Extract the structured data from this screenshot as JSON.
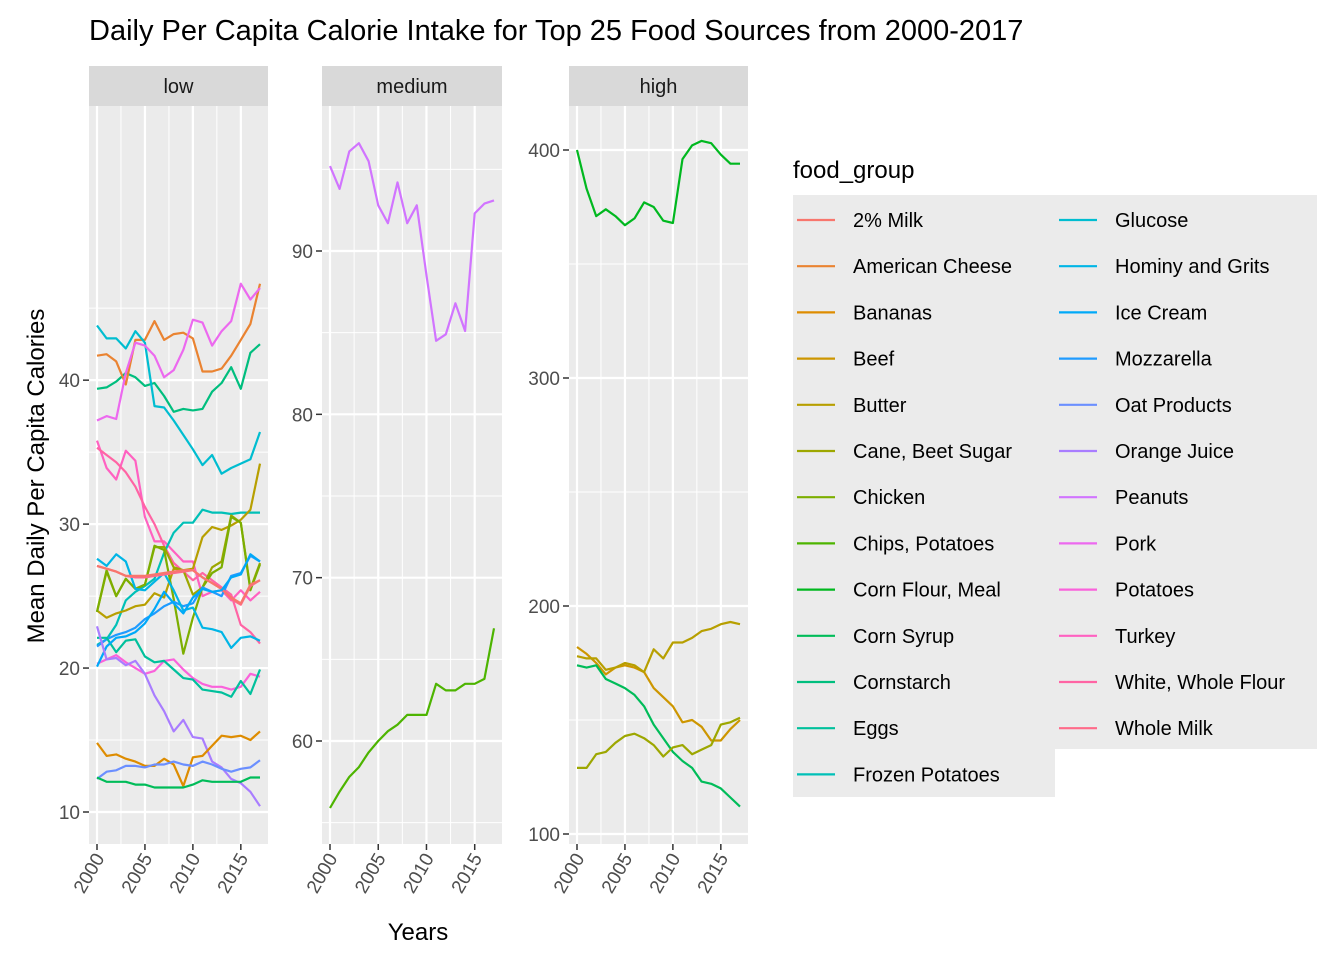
{
  "chart_data": {
    "type": "line",
    "title": "Daily Per Capita Calorie Intake for Top 25 Food Sources from 2000-2017",
    "xlabel": "Years",
    "ylabel": "Mean Daily Per Capita Calories",
    "legend_title": "food_group",
    "legend_position": "right",
    "grid": true,
    "x_ticks": [
      "2000",
      "2005",
      "2010",
      "2015"
    ],
    "x": [
      2000,
      2001,
      2002,
      2003,
      2004,
      2005,
      2006,
      2007,
      2008,
      2009,
      2010,
      2011,
      2012,
      2013,
      2014,
      2015,
      2016,
      2017
    ],
    "series": [
      {
        "name": "2% Milk",
        "color": "#F8766D"
      },
      {
        "name": "American Cheese",
        "color": "#EA8331"
      },
      {
        "name": "Bananas",
        "color": "#D89000"
      },
      {
        "name": "Beef",
        "color": "#C09B00"
      },
      {
        "name": "Butter",
        "color": "#A3A500"
      },
      {
        "name": "Cane, Beet Sugar",
        "color": "#7CAE00"
      },
      {
        "name": "Chicken",
        "color": "#39B600"
      },
      {
        "name": "Chips, Potatoes",
        "color": "#00BB4E"
      },
      {
        "name": "Corn Flour, Meal",
        "color": "#00BF7D"
      },
      {
        "name": "Corn Syrup",
        "color": "#00C1A3"
      },
      {
        "name": "Cornstarch",
        "color": "#00BFC4"
      },
      {
        "name": "Eggs",
        "color": "#00BAE0"
      },
      {
        "name": "Frozen Potatoes",
        "color": "#00B0F6"
      },
      {
        "name": "Glucose",
        "color": "#35A2FF"
      },
      {
        "name": "Hominy and Grits",
        "color": "#9590FF"
      },
      {
        "name": "Ice Cream",
        "color": "#C77CFF"
      },
      {
        "name": "Mozzarella",
        "color": "#E76BF3"
      },
      {
        "name": "Oat Products",
        "color": "#FA62DB"
      },
      {
        "name": "Orange Juice",
        "color": "#FF62BC"
      },
      {
        "name": "Peanuts",
        "color": "#FF6C91"
      },
      {
        "name": "Pork",
        "color": "#F8766D"
      },
      {
        "name": "Potatoes",
        "color": "#EA8331"
      },
      {
        "name": "Turkey",
        "color": "#D89000"
      },
      {
        "name": "White, Whole Flour",
        "color": "#C09B00"
      },
      {
        "name": "Whole Milk",
        "color": "#A3A500"
      }
    ],
    "legend": [
      {
        "name": "2% Milk",
        "color": "#F8766D"
      },
      {
        "name": "American Cheese",
        "color": "#EA8331"
      },
      {
        "name": "Bananas",
        "color": "#DE8C00"
      },
      {
        "name": "Beef",
        "color": "#CD9600"
      },
      {
        "name": "Butter",
        "color": "#B79F00"
      },
      {
        "name": "Cane, Beet Sugar",
        "color": "#9DA700"
      },
      {
        "name": "Chicken",
        "color": "#7CAE00"
      },
      {
        "name": "Chips, Potatoes",
        "color": "#4DB400"
      },
      {
        "name": "Corn Flour, Meal",
        "color": "#00B81F"
      },
      {
        "name": "Corn Syrup",
        "color": "#00BC59"
      },
      {
        "name": "Cornstarch",
        "color": "#00BE7E"
      },
      {
        "name": "Eggs",
        "color": "#00C09C"
      },
      {
        "name": "Frozen Potatoes",
        "color": "#00C0B7"
      },
      {
        "name": "Glucose",
        "color": "#00BDD0"
      },
      {
        "name": "Hominy and Grits",
        "color": "#00B5E6"
      },
      {
        "name": "Ice Cream",
        "color": "#00A9F8"
      },
      {
        "name": "Mozzarella",
        "color": "#1F9BFF"
      },
      {
        "name": "Oat Products",
        "color": "#6B8FFF"
      },
      {
        "name": "Orange Juice",
        "color": "#A97DFF"
      },
      {
        "name": "Peanuts",
        "color": "#D174FF"
      },
      {
        "name": "Pork",
        "color": "#EC69EF"
      },
      {
        "name": "Potatoes",
        "color": "#FA62DB"
      },
      {
        "name": "Turkey",
        "color": "#FF61C1"
      },
      {
        "name": "White, Whole Flour",
        "color": "#FF64A4"
      },
      {
        "name": "Whole Milk",
        "color": "#FF6A89"
      }
    ],
    "panels": [
      {
        "label": "low",
        "ylim": [
          9,
          47.5
        ],
        "y_ticks": [
          10,
          20,
          30,
          40
        ],
        "lines": [
          {
            "name": "Cornstarch",
            "color": "#00BE7E",
            "values": [
              39.4,
              39.5,
              39.9,
              40.5,
              40.2,
              39.6,
              39.8,
              38.9,
              37.8,
              38.0,
              37.9,
              38.0,
              39.2,
              39.8,
              40.9,
              39.4,
              41.9,
              42.5
            ]
          },
          {
            "name": "American Cheese",
            "color": "#EA8331",
            "values": [
              41.7,
              41.8,
              41.3,
              39.7,
              42.8,
              42.8,
              44.1,
              42.8,
              43.2,
              43.3,
              42.9,
              40.6,
              40.6,
              40.8,
              41.7,
              42.8,
              43.9,
              46.7
            ]
          },
          {
            "name": "Glucose",
            "color": "#00BDD0",
            "values": [
              43.8,
              42.9,
              42.9,
              42.2,
              43.4,
              42.6,
              38.2,
              38.1,
              37.2,
              36.2,
              35.2,
              34.1,
              34.8,
              33.5,
              33.9,
              34.2,
              34.5,
              36.4
            ]
          },
          {
            "name": "Pork",
            "color": "#EC69EF",
            "values": [
              37.2,
              37.5,
              37.3,
              40.5,
              42.6,
              42.4,
              41.7,
              40.2,
              40.7,
              42.1,
              44.2,
              44.0,
              42.4,
              43.4,
              44.1,
              46.7,
              45.6,
              46.4
            ]
          },
          {
            "name": "Turkey",
            "color": "#FF61C1",
            "values": [
              35.8,
              33.9,
              33.1,
              35.1,
              34.4,
              30.5,
              28.8,
              28.8,
              28.1,
              27.4,
              27.4,
              25.0,
              25.3,
              25.4,
              24.7,
              25.4,
              24.7,
              25.3
            ]
          },
          {
            "name": "White, Whole Flour",
            "color": "#FF64A4",
            "values": [
              35.3,
              34.8,
              34.3,
              33.6,
              32.6,
              31.2,
              30.0,
              28.5,
              27.3,
              26.7,
              26.1,
              26.6,
              26.1,
              25.6,
              25.1,
              23.0,
              22.5,
              21.7
            ]
          },
          {
            "name": "Frozen Potatoes",
            "color": "#00C0B7",
            "values": [
              21.6,
              22.0,
              23.0,
              24.7,
              25.3,
              25.7,
              26.2,
              28.0,
              29.4,
              30.1,
              30.1,
              31.0,
              30.8,
              30.8,
              30.7,
              30.8,
              30.8,
              30.8
            ]
          },
          {
            "name": "Butter",
            "color": "#B79F00",
            "values": [
              24.0,
              23.5,
              23.8,
              24.0,
              24.3,
              24.4,
              25.2,
              24.9,
              26.9,
              26.8,
              26.9,
              29.1,
              29.8,
              29.6,
              29.9,
              30.3,
              31.0,
              34.2
            ]
          },
          {
            "name": "Cane, Beet Sugar",
            "color": "#9DA700",
            "values": [
              23.9,
              26.7,
              25.0,
              26.2,
              25.5,
              25.8,
              28.4,
              28.4,
              27.0,
              26.8,
              25.1,
              25.6,
              27.0,
              27.4,
              30.6,
              30.1,
              25.5,
              27.3
            ]
          },
          {
            "name": "Chicken",
            "color": "#7CAE00",
            "values": [
              23.9,
              26.8,
              25.0,
              26.2,
              25.5,
              25.8,
              28.5,
              28.2,
              24.8,
              21.0,
              23.5,
              25.6,
              26.6,
              27.0,
              30.5,
              30.1,
              25.4,
              27.2
            ]
          },
          {
            "name": "Mozzarella",
            "color": "#1F9BFF",
            "values": [
              21.5,
              22.0,
              22.3,
              22.5,
              22.8,
              23.4,
              23.8,
              24.3,
              24.6,
              24.3,
              24.5,
              25.6,
              25.3,
              25.0,
              26.4,
              26.6,
              27.8,
              27.4
            ]
          },
          {
            "name": "Hominy and Grits",
            "color": "#00B5E6",
            "values": [
              27.6,
              27.1,
              27.9,
              27.4,
              25.5,
              25.4,
              26.0,
              26.6,
              25.4,
              24.0,
              24.2,
              22.8,
              22.7,
              22.5,
              21.4,
              22.1,
              22.2,
              21.9
            ]
          },
          {
            "name": "Potatoes",
            "color": "#FA62DB",
            "values": [
              20.3,
              20.6,
              20.9,
              20.4,
              20.0,
              19.6,
              19.8,
              20.5,
              20.6,
              19.9,
              19.3,
              18.9,
              18.7,
              18.7,
              18.5,
              18.7,
              19.6,
              19.4
            ]
          },
          {
            "name": "Whole Milk",
            "color": "#FF6A89",
            "values": [
              27.1,
              26.9,
              26.7,
              26.4,
              26.3,
              26.3,
              26.4,
              26.5,
              26.6,
              26.7,
              26.8,
              26.3,
              25.9,
              25.5,
              24.8,
              24.4,
              25.7,
              26.1
            ]
          },
          {
            "name": "2% Milk",
            "color": "#F8766D",
            "values": [
              27.1,
              26.9,
              26.7,
              26.4,
              26.4,
              26.4,
              26.5,
              26.6,
              26.7,
              26.8,
              26.8,
              26.3,
              25.9,
              25.5,
              24.9,
              24.5,
              25.8,
              26.1
            ]
          },
          {
            "name": "Eggs",
            "color": "#00C09C",
            "values": [
              22.1,
              22.1,
              21.1,
              21.9,
              22.0,
              20.8,
              20.4,
              20.5,
              19.9,
              19.3,
              19.2,
              18.5,
              18.4,
              18.3,
              18.0,
              19.1,
              18.2,
              19.9
            ]
          },
          {
            "name": "Ice Cream",
            "color": "#00A9F8",
            "values": [
              20.1,
              21.5,
              22.1,
              22.2,
              22.5,
              23.1,
              24.1,
              25.3,
              24.5,
              23.8,
              24.9,
              25.5,
              25.3,
              25.4,
              26.3,
              26.5,
              27.9,
              27.4
            ]
          },
          {
            "name": "Orange Juice",
            "color": "#A97DFF",
            "values": [
              22.9,
              20.6,
              20.7,
              20.2,
              20.5,
              19.6,
              18.1,
              17.0,
              15.6,
              16.4,
              15.2,
              15.1,
              13.5,
              13.1,
              12.3,
              12.0,
              11.4,
              10.4
            ]
          },
          {
            "name": "Bananas",
            "color": "#DE8C00",
            "values": [
              14.8,
              13.9,
              14.0,
              13.7,
              13.5,
              13.2,
              13.2,
              13.7,
              13.3,
              11.8,
              13.8,
              13.9,
              14.6,
              15.3,
              15.2,
              15.3,
              15.0,
              15.6
            ]
          },
          {
            "name": "Oat Products",
            "color": "#6B8FFF",
            "values": [
              12.3,
              12.8,
              12.9,
              13.2,
              13.2,
              13.1,
              13.3,
              13.3,
              13.5,
              13.3,
              13.2,
              13.5,
              13.3,
              13.0,
              12.8,
              13.0,
              13.1,
              13.6
            ]
          },
          {
            "name": "Corn Syrup",
            "color": "#00BC59",
            "values": [
              12.4,
              12.1,
              12.1,
              12.1,
              11.9,
              11.9,
              11.7,
              11.7,
              11.7,
              11.7,
              11.9,
              12.2,
              12.1,
              12.1,
              12.1,
              12.1,
              12.4,
              12.4
            ]
          }
        ]
      },
      {
        "label": "medium",
        "ylim": [
          55,
          99.2
        ],
        "y_ticks": [
          60,
          70,
          80,
          90
        ],
        "lines": [
          {
            "name": "Peanuts",
            "color": "#D174FF",
            "values": [
              95.2,
              93.8,
              96.1,
              96.6,
              95.5,
              92.8,
              91.7,
              94.2,
              91.7,
              92.8,
              88.5,
              84.5,
              84.9,
              86.8,
              85.1,
              92.3,
              92.9,
              93.1
            ]
          },
          {
            "name": "Chips, Potatoes",
            "color": "#4DB400",
            "values": [
              55.9,
              56.9,
              57.8,
              58.4,
              59.3,
              60.0,
              60.6,
              61.0,
              61.6,
              61.6,
              61.6,
              63.5,
              63.1,
              63.1,
              63.5,
              63.5,
              63.8,
              66.9
            ]
          }
        ]
      },
      {
        "label": "high",
        "ylim": [
          97,
          428
        ],
        "y_ticks": [
          100,
          200,
          300,
          400
        ],
        "lines": [
          {
            "name": "Corn Flour, Meal",
            "color": "#00B81F",
            "values": [
              400,
              383,
              371,
              374,
              371,
              367,
              370,
              377,
              375,
              369,
              368,
              396,
              402,
              404,
              403,
              398,
              394,
              394
            ]
          },
          {
            "name": "Beef",
            "color": "#CD9600",
            "values": [
              182,
              179,
              175,
              170,
              173,
              174,
              173,
              171,
              164,
              160,
              156,
              149,
              150,
              147,
              141,
              141,
              146,
              150
            ]
          },
          {
            "name": "Butter",
            "color": "#B79F00",
            "values": [
              178,
              177,
              177,
              172,
              173,
              175,
              174,
              171,
              181,
              177,
              184,
              184,
              186,
              189,
              190,
              192,
              193,
              192
            ]
          },
          {
            "name": "Corn Syrup",
            "color": "#00BC59",
            "values": [
              174,
              173,
              174,
              168,
              166,
              164,
              161,
              156,
              148,
              142,
              136,
              132,
              129,
              123,
              122,
              120,
              116,
              112
            ]
          },
          {
            "name": "Cane, Beet Sugar",
            "color": "#9DA700",
            "values": [
              129,
              129,
              135,
              136,
              140,
              143,
              144,
              142,
              139,
              134,
              138,
              139,
              135,
              137,
              139,
              148,
              149,
              151
            ]
          }
        ]
      }
    ]
  }
}
